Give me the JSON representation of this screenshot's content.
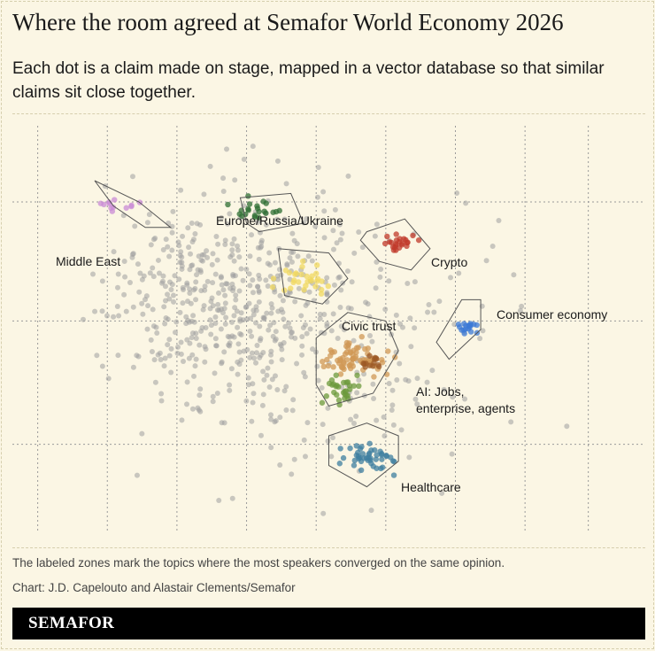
{
  "title": "Where the room agreed at Semafor World Economy 2026",
  "subtitle": "Each dot is a claim made on stage, mapped in a vector database so that similar claims sit close together.",
  "footnote": "The labeled zones mark the topics where the most speakers converged on the same opinion.",
  "credit": "Chart: J.D. Capelouto and Alastair Clements/Semafor",
  "brand": "SEMAFOR",
  "colors": {
    "background": "#fbf6e4",
    "grid": "#9a9a9a",
    "dot": "#9e9e9e",
    "zone_stroke": "#555555"
  },
  "chart_data": {
    "type": "scatter",
    "description_grid": "dashed vertical and horizontal guides, no tick labels",
    "x_range": [
      0,
      100
    ],
    "y_range": [
      0,
      100
    ],
    "zones": [
      {
        "label": "Middle East",
        "color": "#c98bd6",
        "cx": 17,
        "cy": 79,
        "spread": [
          3,
          1.5
        ],
        "n": 12,
        "polygon": [
          [
            13,
            85
          ],
          [
            20,
            80
          ],
          [
            25,
            74
          ],
          [
            21,
            74
          ],
          [
            16,
            79
          ]
        ]
      },
      {
        "label": "Europe/Russia/Ukraine",
        "color": "#2e6e33",
        "cx": 39,
        "cy": 78,
        "spread": [
          3.2,
          2.4
        ],
        "n": 22,
        "polygon": [
          [
            36,
            81
          ],
          [
            44,
            82
          ],
          [
            46,
            75
          ],
          [
            39,
            73
          ],
          [
            37,
            75
          ]
        ]
      },
      {
        "label": "Civic trust",
        "color": "#f0d860",
        "cx": 47,
        "cy": 62,
        "spread": [
          4,
          2.5
        ],
        "n": 30,
        "polygon": [
          [
            42,
            69
          ],
          [
            50,
            68
          ],
          [
            53,
            62
          ],
          [
            49,
            56
          ],
          [
            43,
            58
          ]
        ]
      },
      {
        "label": "Crypto",
        "color": "#c0392b",
        "cx": 61,
        "cy": 70,
        "spread": [
          2.8,
          2.6
        ],
        "n": 24,
        "polygon": [
          [
            56,
            73
          ],
          [
            62,
            76
          ],
          [
            66,
            69
          ],
          [
            63,
            64
          ],
          [
            58,
            66
          ],
          [
            55,
            71
          ]
        ]
      },
      {
        "label": "Consumer economy",
        "color": "#3c79d6",
        "cx": 72,
        "cy": 50,
        "spread": [
          2.2,
          2
        ],
        "n": 18,
        "polygon": [
          [
            67,
            47
          ],
          [
            71,
            57
          ],
          [
            74,
            57
          ],
          [
            74,
            50
          ],
          [
            69,
            43
          ]
        ]
      },
      {
        "label": "AI: Jobs, enterprise, agents",
        "color": "#d09856",
        "cx": 54,
        "cy": 43,
        "spread": [
          4,
          3.2
        ],
        "n": 70,
        "polygon": [
          [
            48,
            48
          ],
          [
            53,
            54
          ],
          [
            59,
            52
          ],
          [
            61,
            45
          ],
          [
            57,
            35
          ],
          [
            50,
            32
          ],
          [
            48,
            37
          ]
        ]
      },
      {
        "label": "Healthcare",
        "color": "#3f7fa0",
        "cx": 56,
        "cy": 20,
        "spread": [
          4,
          2.6
        ],
        "n": 45,
        "polygon": [
          [
            50,
            25
          ],
          [
            56,
            28
          ],
          [
            61,
            25
          ],
          [
            61,
            19
          ],
          [
            56,
            13
          ],
          [
            50,
            18
          ]
        ]
      }
    ],
    "sub_series": [
      {
        "name": "",
        "color": "#6c9a3c",
        "cx": 52,
        "cy": 36,
        "spread": [
          2.6,
          3
        ],
        "n": 30
      },
      {
        "name": "",
        "color": "#9c5a26",
        "cx": 57,
        "cy": 42,
        "spread": [
          1.3,
          2
        ],
        "n": 14
      }
    ],
    "background_dots": 650
  }
}
